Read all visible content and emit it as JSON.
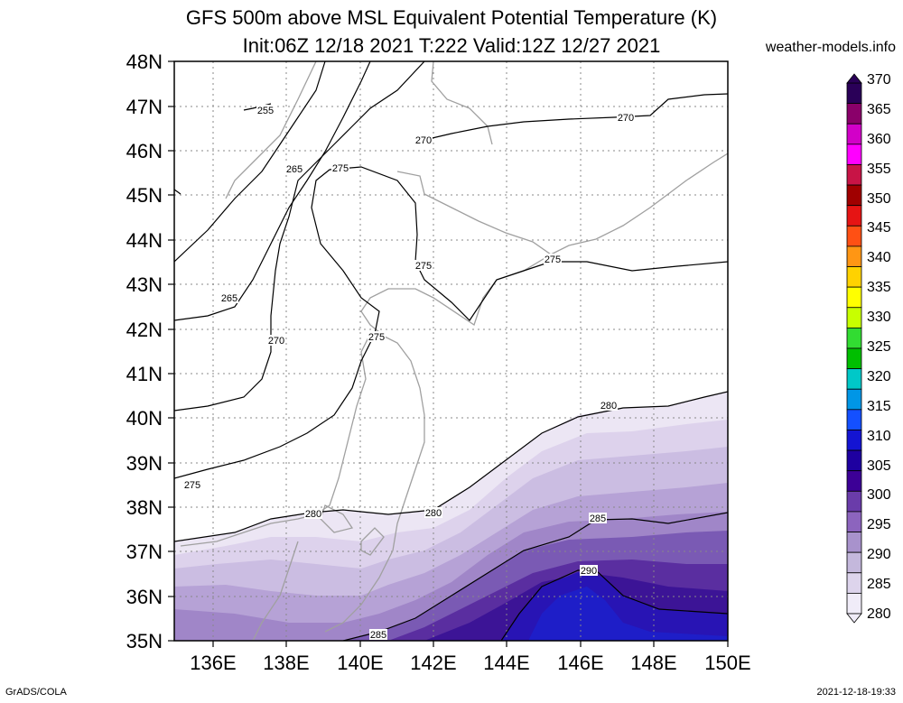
{
  "title_line1": "GFS 500m above MSL Equivalent Potential Temperature (K)",
  "title_line2": "Init:06Z 12/18 2021 T:222 Valid:12Z 12/27 2021",
  "website": "weather-models.info",
  "footer_left": "GrADS/COLA",
  "footer_right": "2021-12-18-19:33",
  "lat_labels": [
    "48N",
    "47N",
    "46N",
    "45N",
    "44N",
    "43N",
    "42N",
    "41N",
    "40N",
    "39N",
    "38N",
    "37N",
    "36N",
    "35N"
  ],
  "lon_labels": [
    "136E",
    "138E",
    "140E",
    "142E",
    "144E",
    "146E",
    "148E",
    "150E"
  ],
  "colorbar": {
    "labels": [
      "370",
      "365",
      "360",
      "355",
      "350",
      "345",
      "340",
      "335",
      "330",
      "325",
      "320",
      "315",
      "310",
      "305",
      "300",
      "295",
      "290",
      "285",
      "280"
    ],
    "colors": [
      "#2a0058",
      "#8a006a",
      "#d200c8",
      "#ff00ff",
      "#c81446",
      "#a00000",
      "#e61414",
      "#ff5014",
      "#ff9614",
      "#ffd200",
      "#ffff00",
      "#c8ff00",
      "#32dc32",
      "#00be00",
      "#00c8c8",
      "#0096e6",
      "#1450ff",
      "#1414d2",
      "#1e00a0",
      "#3c0096",
      "#6a3caa",
      "#8c64be",
      "#a892cc",
      "#c4b8dc",
      "#ddd4ec",
      "#f0ecf8"
    ]
  },
  "contour_labels": [
    "255",
    "265",
    "265",
    "270",
    "270",
    "270",
    "275",
    "275",
    "275",
    "275",
    "275",
    "280",
    "280",
    "280",
    "285",
    "285",
    "290"
  ]
}
